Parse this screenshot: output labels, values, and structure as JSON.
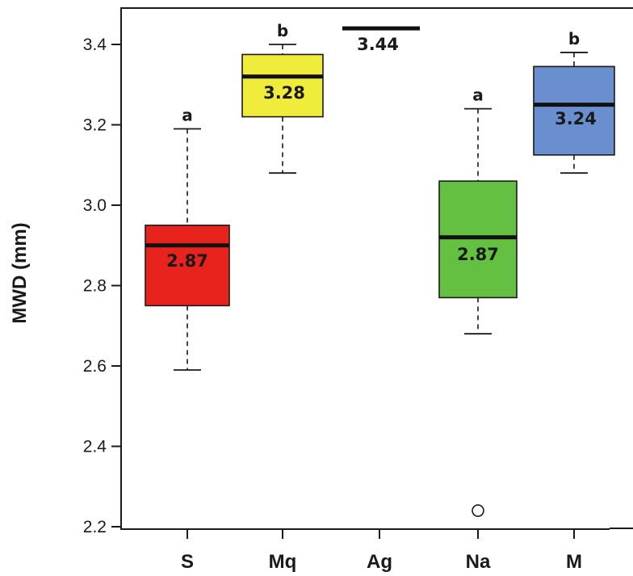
{
  "chart_data": {
    "type": "box",
    "title": "",
    "xlabel": "",
    "ylabel": "MWD (mm)",
    "ylim": [
      2.2,
      3.5
    ],
    "yticks": [
      "2.2",
      "2.4",
      "2.6",
      "2.8",
      "3.0",
      "3.2",
      "3.4"
    ],
    "grid": false,
    "categories": [
      "S",
      "Mq",
      "Ag",
      "Na",
      "M"
    ],
    "boxes": [
      {
        "category": "S",
        "min": 2.59,
        "q1": 2.75,
        "median": 2.9,
        "q3": 2.95,
        "max": 3.19,
        "label": "2.87",
        "group": "a",
        "color": "#e8221c",
        "outliers": []
      },
      {
        "category": "Mq",
        "min": 3.08,
        "q1": 3.22,
        "median": 3.32,
        "q3": 3.375,
        "max": 3.4,
        "label": "3.28",
        "group": "b",
        "color": "#f0ec3c",
        "outliers": []
      },
      {
        "category": "Ag",
        "min": 3.44,
        "q1": 3.44,
        "median": 3.44,
        "q3": 3.44,
        "max": 3.44,
        "label": "3.44",
        "group": "",
        "color": "#1a1a1a",
        "outliers": []
      },
      {
        "category": "Na",
        "min": 2.68,
        "q1": 2.77,
        "median": 2.92,
        "q3": 3.06,
        "max": 3.24,
        "label": "2.87",
        "group": "a",
        "color": "#63c040",
        "outliers": [
          2.24
        ]
      },
      {
        "category": "M",
        "min": 3.08,
        "q1": 3.125,
        "median": 3.25,
        "q3": 3.345,
        "max": 3.38,
        "label": "3.24",
        "group": "b",
        "color": "#6a8fcf",
        "outliers": []
      }
    ]
  }
}
